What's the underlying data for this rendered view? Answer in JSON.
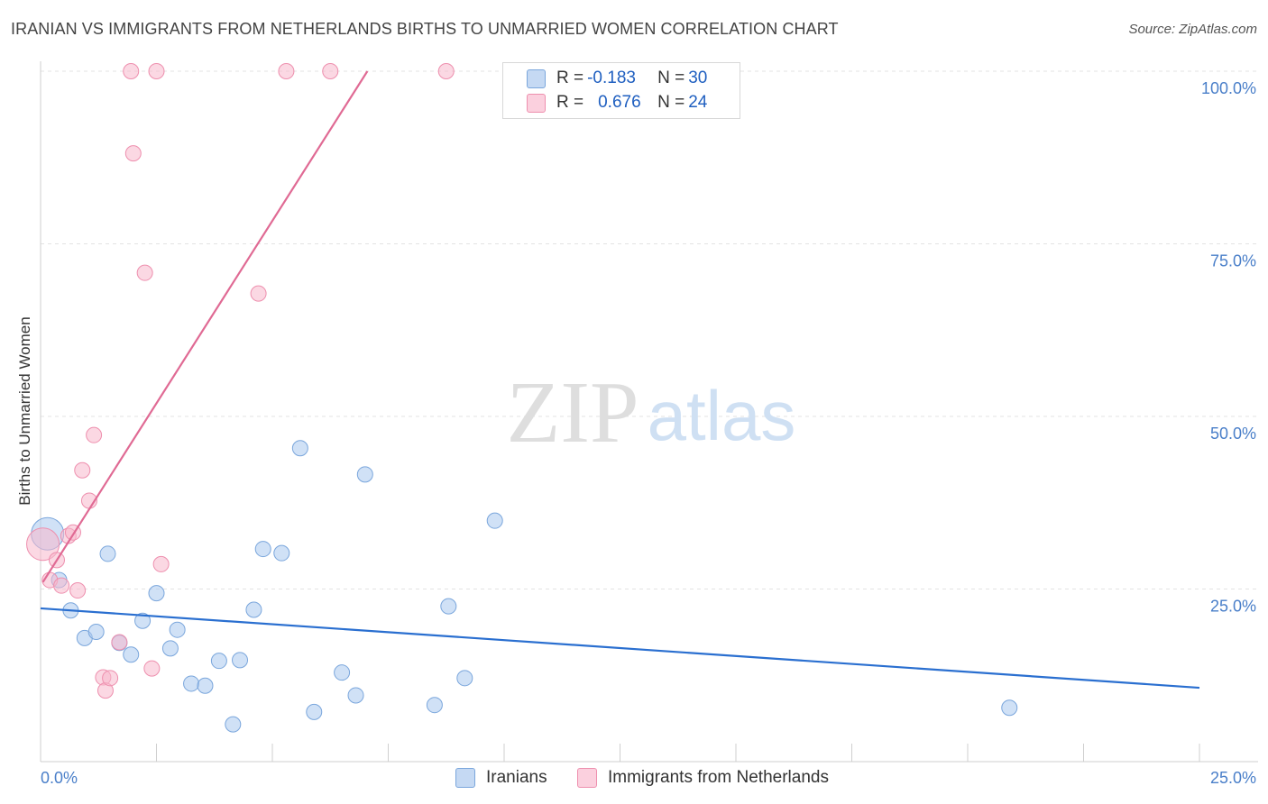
{
  "header": {
    "title": "IRANIAN VS IMMIGRANTS FROM NETHERLANDS BIRTHS TO UNMARRIED WOMEN CORRELATION CHART",
    "source": "Source: ZipAtlas.com"
  },
  "watermark": {
    "zip": "ZIP",
    "atlas": "atlas"
  },
  "legend": {
    "rows": [
      {
        "r_label": "R =",
        "r_value": "-0.183",
        "n_label": "N =",
        "n_value": "30",
        "color": "#aac8ef"
      },
      {
        "r_label": "R =",
        "r_value": "0.676",
        "n_label": "N =",
        "n_value": "24",
        "color": "#f7b8cc"
      }
    ]
  },
  "chart_data": {
    "type": "scatter",
    "title": "IRANIAN VS IMMIGRANTS FROM NETHERLANDS BIRTHS TO UNMARRIED WOMEN CORRELATION CHART",
    "xlabel": "",
    "ylabel": "Births to Unmarried Women",
    "xlim": [
      0,
      25
    ],
    "ylim": [
      0,
      105
    ],
    "x_tick_labels": [
      "0.0%",
      "25.0%"
    ],
    "y_tick_labels": [
      "25.0%",
      "50.0%",
      "75.0%",
      "100.0%"
    ],
    "y_ticks": [
      25,
      50,
      75,
      100
    ],
    "grid": true,
    "legend_position": "top-center",
    "series": [
      {
        "name": "Iranians",
        "color": "#aac8ef",
        "stroke": "#7aa6dc",
        "trend_color": "#2a6fd0",
        "trend": {
          "x0": 0,
          "y0": 22.2,
          "x1": 25,
          "y1": 10.7
        },
        "points": [
          {
            "x": 0.15,
            "y": 33.0,
            "big": true
          },
          {
            "x": 0.4,
            "y": 26.3
          },
          {
            "x": 0.65,
            "y": 21.9
          },
          {
            "x": 0.95,
            "y": 17.9
          },
          {
            "x": 1.2,
            "y": 18.8
          },
          {
            "x": 1.45,
            "y": 30.1
          },
          {
            "x": 1.7,
            "y": 17.2
          },
          {
            "x": 1.95,
            "y": 15.5
          },
          {
            "x": 2.2,
            "y": 20.4
          },
          {
            "x": 2.5,
            "y": 24.4
          },
          {
            "x": 2.8,
            "y": 16.4
          },
          {
            "x": 2.95,
            "y": 19.1
          },
          {
            "x": 3.25,
            "y": 11.3
          },
          {
            "x": 3.55,
            "y": 11.0
          },
          {
            "x": 3.85,
            "y": 14.6
          },
          {
            "x": 4.15,
            "y": 5.4
          },
          {
            "x": 4.3,
            "y": 14.7
          },
          {
            "x": 4.6,
            "y": 22.0
          },
          {
            "x": 4.8,
            "y": 30.8
          },
          {
            "x": 5.2,
            "y": 30.2
          },
          {
            "x": 5.6,
            "y": 45.4
          },
          {
            "x": 5.9,
            "y": 7.2
          },
          {
            "x": 6.5,
            "y": 12.9
          },
          {
            "x": 6.8,
            "y": 9.6
          },
          {
            "x": 7.0,
            "y": 41.6
          },
          {
            "x": 8.5,
            "y": 8.2
          },
          {
            "x": 8.8,
            "y": 22.5
          },
          {
            "x": 9.15,
            "y": 12.1
          },
          {
            "x": 9.8,
            "y": 34.9
          },
          {
            "x": 20.9,
            "y": 7.8
          }
        ]
      },
      {
        "name": "Immigrants from Netherlands",
        "color": "#f7b8cc",
        "stroke": "#ee8fae",
        "trend_color": "#e06a94",
        "trend": {
          "x0": 0.05,
          "y0": 26.0,
          "x1": 7.05,
          "y1": 100.0
        },
        "points": [
          {
            "x": 0.05,
            "y": 31.5,
            "big": true
          },
          {
            "x": 0.2,
            "y": 26.3
          },
          {
            "x": 0.35,
            "y": 29.2
          },
          {
            "x": 0.45,
            "y": 25.5
          },
          {
            "x": 0.6,
            "y": 32.7
          },
          {
            "x": 0.7,
            "y": 33.2
          },
          {
            "x": 0.8,
            "y": 24.8
          },
          {
            "x": 0.9,
            "y": 42.2
          },
          {
            "x": 1.05,
            "y": 37.8
          },
          {
            "x": 1.15,
            "y": 47.3
          },
          {
            "x": 1.35,
            "y": 12.2
          },
          {
            "x": 1.4,
            "y": 10.3
          },
          {
            "x": 1.5,
            "y": 12.1
          },
          {
            "x": 1.7,
            "y": 17.3
          },
          {
            "x": 1.95,
            "y": 100.0
          },
          {
            "x": 2.0,
            "y": 88.1
          },
          {
            "x": 2.25,
            "y": 70.8
          },
          {
            "x": 2.4,
            "y": 13.5
          },
          {
            "x": 2.5,
            "y": 100.0
          },
          {
            "x": 2.6,
            "y": 28.6
          },
          {
            "x": 4.7,
            "y": 67.8
          },
          {
            "x": 5.3,
            "y": 100.0
          },
          {
            "x": 6.25,
            "y": 100.0
          },
          {
            "x": 8.75,
            "y": 100.0
          }
        ]
      }
    ]
  }
}
